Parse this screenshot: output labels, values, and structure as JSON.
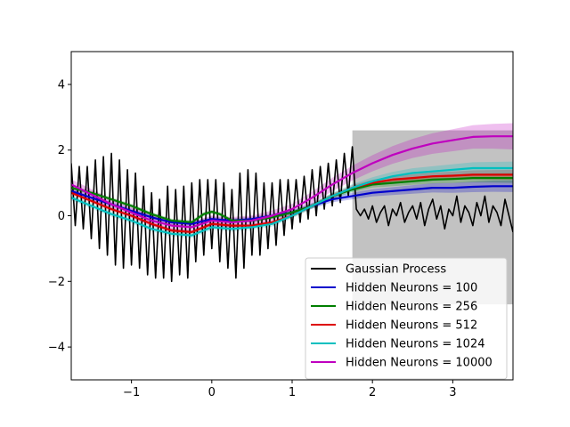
{
  "chart_data": {
    "type": "line",
    "xlim": [
      -1.75,
      3.75
    ],
    "ylim": [
      -5,
      5
    ],
    "x_ticks": [
      {
        "value": -1,
        "label": "−1"
      },
      {
        "value": 0,
        "label": "0"
      },
      {
        "value": 1,
        "label": "1"
      },
      {
        "value": 2,
        "label": "2"
      },
      {
        "value": 3,
        "label": "3"
      }
    ],
    "y_ticks": [
      {
        "value": -4,
        "label": "−4"
      },
      {
        "value": -2,
        "label": "−2"
      },
      {
        "value": 0,
        "label": "0"
      },
      {
        "value": 2,
        "label": "2"
      },
      {
        "value": 4,
        "label": "4"
      }
    ],
    "grid": false,
    "legend_position": "lower-right",
    "gp_band": {
      "x_range": [
        1.75,
        3.75
      ],
      "lower": -2.7,
      "upper": 2.6,
      "color": "#bfbfbf"
    },
    "series": [
      {
        "name": "Gaussian Process",
        "color": "#000000",
        "x": [
          -1.75,
          -1.7,
          -1.65,
          -1.6,
          -1.55,
          -1.5,
          -1.45,
          -1.4,
          -1.35,
          -1.3,
          -1.25,
          -1.2,
          -1.15,
          -1.1,
          -1.05,
          -1.0,
          -0.95,
          -0.9,
          -0.85,
          -0.8,
          -0.75,
          -0.7,
          -0.65,
          -0.6,
          -0.55,
          -0.5,
          -0.45,
          -0.4,
          -0.35,
          -0.3,
          -0.25,
          -0.2,
          -0.15,
          -0.1,
          -0.05,
          0.0,
          0.05,
          0.1,
          0.15,
          0.2,
          0.25,
          0.3,
          0.35,
          0.4,
          0.45,
          0.5,
          0.55,
          0.6,
          0.65,
          0.7,
          0.75,
          0.8,
          0.85,
          0.9,
          0.95,
          1.0,
          1.05,
          1.1,
          1.15,
          1.2,
          1.25,
          1.3,
          1.35,
          1.4,
          1.45,
          1.5,
          1.55,
          1.6,
          1.65,
          1.7,
          1.75,
          1.8,
          1.85,
          1.9,
          1.95,
          2.0,
          2.05,
          2.1,
          2.15,
          2.2,
          2.25,
          2.3,
          2.35,
          2.4,
          2.45,
          2.5,
          2.55,
          2.6,
          2.65,
          2.7,
          2.75,
          2.8,
          2.85,
          2.9,
          2.95,
          3.0,
          3.05,
          3.1,
          3.15,
          3.2,
          3.25,
          3.3,
          3.35,
          3.4,
          3.45,
          3.5,
          3.55,
          3.6,
          3.65,
          3.7,
          3.75
        ],
        "y": [
          1.6,
          -0.3,
          1.5,
          -0.4,
          1.5,
          -0.7,
          1.7,
          -1.0,
          1.8,
          -1.2,
          1.9,
          -1.5,
          1.7,
          -1.6,
          1.4,
          -1.5,
          1.3,
          -1.6,
          0.9,
          -1.8,
          0.7,
          -1.9,
          0.5,
          -1.9,
          0.9,
          -2.0,
          0.8,
          -1.8,
          0.9,
          -1.9,
          1.0,
          -1.4,
          1.1,
          -1.2,
          1.1,
          -1.0,
          1.1,
          -1.4,
          1.0,
          -1.6,
          0.8,
          -1.9,
          1.3,
          -1.6,
          1.4,
          -1.2,
          1.3,
          -1.2,
          1.0,
          -1.0,
          1.0,
          -0.9,
          1.1,
          -0.6,
          1.1,
          -0.4,
          1.1,
          -0.2,
          1.2,
          -0.1,
          1.4,
          0.0,
          1.5,
          0.2,
          1.6,
          0.3,
          1.7,
          0.4,
          1.9,
          0.6,
          2.1,
          0.2,
          0.0,
          0.2,
          -0.1,
          0.3,
          -0.2,
          0.1,
          0.3,
          -0.3,
          0.2,
          0.0,
          0.4,
          -0.2,
          0.1,
          0.3,
          -0.1,
          0.4,
          -0.3,
          0.2,
          0.5,
          -0.1,
          0.3,
          -0.4,
          0.2,
          0.0,
          0.6,
          -0.2,
          0.3,
          0.1,
          -0.3,
          0.4,
          0.0,
          0.6,
          -0.2,
          0.3,
          0.1,
          -0.3,
          0.5,
          0.0,
          -0.5
        ]
      },
      {
        "name": "Hidden Neurons = 100",
        "color": "#0000cc",
        "band": 0.18,
        "x": [
          -1.75,
          -1.5,
          -1.25,
          -1.0,
          -0.75,
          -0.5,
          -0.25,
          0.0,
          0.25,
          0.5,
          0.75,
          1.0,
          1.25,
          1.5,
          1.75,
          2.0,
          2.25,
          2.5,
          2.75,
          3.0,
          3.25,
          3.5,
          3.75
        ],
        "y": [
          0.75,
          0.55,
          0.35,
          0.15,
          -0.05,
          -0.2,
          -0.25,
          -0.1,
          -0.15,
          -0.1,
          0.0,
          0.1,
          0.3,
          0.5,
          0.6,
          0.7,
          0.75,
          0.8,
          0.85,
          0.85,
          0.88,
          0.9,
          0.9
        ]
      },
      {
        "name": "Hidden Neurons = 256",
        "color": "#007f00",
        "band": 0.15,
        "x": [
          -1.75,
          -1.5,
          -1.25,
          -1.0,
          -0.75,
          -0.5,
          -0.25,
          -0.1,
          0.0,
          0.1,
          0.25,
          0.5,
          0.75,
          1.0,
          1.25,
          1.5,
          1.75,
          2.0,
          2.25,
          2.5,
          2.75,
          3.0,
          3.25,
          3.5,
          3.75
        ],
        "y": [
          0.85,
          0.7,
          0.5,
          0.3,
          0.05,
          -0.15,
          -0.2,
          0.05,
          0.12,
          0.05,
          -0.15,
          -0.15,
          -0.05,
          0.1,
          0.3,
          0.6,
          0.8,
          0.95,
          1.0,
          1.05,
          1.1,
          1.12,
          1.15,
          1.15,
          1.15
        ]
      },
      {
        "name": "Hidden Neurons = 512",
        "color": "#dd0000",
        "band": 0.15,
        "x": [
          -1.75,
          -1.5,
          -1.25,
          -1.0,
          -0.75,
          -0.5,
          -0.25,
          0.0,
          0.25,
          0.5,
          0.75,
          1.0,
          1.25,
          1.5,
          1.75,
          2.0,
          2.25,
          2.5,
          2.75,
          3.0,
          3.25,
          3.5,
          3.75
        ],
        "y": [
          0.7,
          0.45,
          0.2,
          0.0,
          -0.25,
          -0.45,
          -0.5,
          -0.25,
          -0.3,
          -0.3,
          -0.2,
          0.0,
          0.3,
          0.6,
          0.85,
          1.0,
          1.1,
          1.15,
          1.2,
          1.22,
          1.25,
          1.25,
          1.25
        ]
      },
      {
        "name": "Hidden Neurons = 1024",
        "color": "#00bfbf",
        "band": 0.2,
        "x": [
          -1.75,
          -1.5,
          -1.25,
          -1.0,
          -0.75,
          -0.5,
          -0.25,
          0.0,
          0.25,
          0.5,
          0.75,
          1.0,
          1.25,
          1.5,
          1.75,
          2.0,
          2.25,
          2.5,
          2.75,
          3.0,
          3.25,
          3.5,
          3.75
        ],
        "y": [
          0.55,
          0.3,
          0.05,
          -0.15,
          -0.4,
          -0.55,
          -0.6,
          -0.35,
          -0.4,
          -0.35,
          -0.25,
          0.0,
          0.3,
          0.6,
          0.85,
          1.05,
          1.2,
          1.3,
          1.35,
          1.4,
          1.45,
          1.45,
          1.45
        ]
      },
      {
        "name": "Hidden Neurons = 10000",
        "color": "#bf00bf",
        "band": 0.4,
        "x": [
          -1.75,
          -1.5,
          -1.25,
          -1.0,
          -0.75,
          -0.5,
          -0.25,
          0.0,
          0.25,
          0.5,
          0.75,
          1.0,
          1.25,
          1.5,
          1.75,
          2.0,
          2.25,
          2.5,
          2.75,
          3.0,
          3.25,
          3.5,
          3.75
        ],
        "y": [
          0.95,
          0.65,
          0.35,
          0.1,
          -0.15,
          -0.3,
          -0.35,
          -0.15,
          -0.2,
          -0.15,
          0.0,
          0.2,
          0.55,
          0.95,
          1.3,
          1.6,
          1.85,
          2.05,
          2.2,
          2.3,
          2.4,
          2.42,
          2.42
        ]
      }
    ]
  }
}
